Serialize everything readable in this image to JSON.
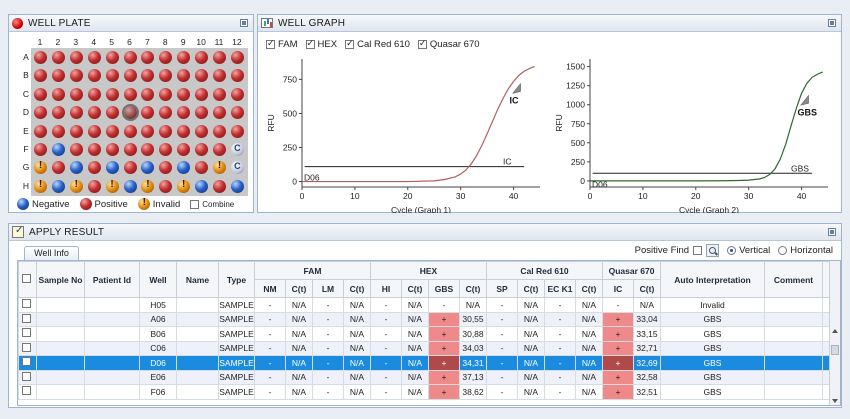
{
  "plate": {
    "title": "WELL PLATE",
    "columns": [
      "1",
      "2",
      "3",
      "4",
      "5",
      "6",
      "7",
      "8",
      "9",
      "10",
      "11",
      "12"
    ],
    "rows": [
      "A",
      "B",
      "C",
      "D",
      "E",
      "F",
      "G",
      "H"
    ],
    "wells": [
      [
        "pos",
        "pos",
        "pos",
        "pos",
        "pos",
        "pos",
        "pos",
        "pos",
        "pos",
        "pos",
        "pos",
        "pos"
      ],
      [
        "pos",
        "pos",
        "pos",
        "pos",
        "pos",
        "pos",
        "pos",
        "pos",
        "pos",
        "pos",
        "pos",
        "pos"
      ],
      [
        "pos",
        "pos",
        "pos",
        "pos",
        "pos",
        "pos",
        "pos",
        "pos",
        "pos",
        "pos",
        "pos",
        "pos"
      ],
      [
        "pos",
        "pos",
        "pos",
        "pos",
        "pos",
        "sel",
        "pos",
        "pos",
        "pos",
        "pos",
        "pos",
        "pos"
      ],
      [
        "pos",
        "pos",
        "pos",
        "pos",
        "pos",
        "pos",
        "pos",
        "pos",
        "pos",
        "pos",
        "pos",
        "pos"
      ],
      [
        "pos",
        "neg",
        "pos",
        "pos",
        "pos",
        "pos",
        "pos",
        "pos",
        "pos",
        "pos",
        "pos",
        "ctrl"
      ],
      [
        "inv",
        "pos",
        "neg",
        "pos",
        "neg",
        "pos",
        "neg",
        "pos",
        "neg",
        "pos",
        "inv",
        "ctrl"
      ],
      [
        "inv",
        "neg",
        "inv",
        "pos",
        "inv",
        "neg",
        "inv",
        "pos",
        "inv",
        "neg",
        "pos",
        "neg"
      ]
    ],
    "legend": {
      "negative": "Negative",
      "positive": "Positive",
      "invalid": "Invalid",
      "combine": "Combine"
    }
  },
  "graph": {
    "title": "WELL GRAPH",
    "channels": [
      "FAM",
      "HEX",
      "Cal Red 610",
      "Quasar 670"
    ],
    "colors": {
      "graph1": "#b06060",
      "graph2": "#2e6a2e"
    },
    "chart_data": [
      {
        "type": "line",
        "xlabel": "Cycle (Graph 1)",
        "ylabel": "RFU",
        "xlim": [
          0,
          45
        ],
        "ylim": [
          -40,
          900
        ],
        "xticks": [
          0,
          10,
          20,
          30,
          40
        ],
        "yticks": [
          0,
          250,
          500,
          750
        ],
        "threshold": 110,
        "threshold_label": "IC",
        "curve_label": "IC",
        "well_label": "D06",
        "series": [
          {
            "x": [
              0,
              5,
              10,
              15,
              20,
              25,
              27,
              29,
              30,
              31,
              32,
              33,
              34,
              35,
              36,
              37,
              38,
              39,
              40,
              41,
              42,
              43,
              44
            ],
            "values": [
              0,
              0,
              0,
              0,
              0,
              5,
              15,
              35,
              55,
              85,
              130,
              190,
              265,
              350,
              440,
              530,
              610,
              680,
              735,
              780,
              810,
              830,
              845
            ]
          }
        ]
      },
      {
        "type": "line",
        "xlabel": "Cycle (Graph 2)",
        "ylabel": "RFU",
        "xlim": [
          0,
          45
        ],
        "ylim": [
          -80,
          1600
        ],
        "xticks": [
          0,
          10,
          20,
          30,
          40
        ],
        "yticks": [
          0,
          250,
          500,
          750,
          1000,
          1250,
          1500
        ],
        "threshold": 100,
        "threshold_label": "GBS",
        "curve_label": "GBS",
        "well_label": "D06",
        "series": [
          {
            "x": [
              0,
              5,
              10,
              15,
              20,
              25,
              28,
              30,
              32,
              33,
              34,
              35,
              36,
              37,
              38,
              39,
              40,
              41,
              42,
              43,
              44
            ],
            "values": [
              0,
              0,
              0,
              0,
              0,
              2,
              5,
              10,
              25,
              45,
              85,
              160,
              290,
              480,
              720,
              950,
              1150,
              1280,
              1360,
              1400,
              1430
            ]
          }
        ]
      }
    ]
  },
  "result": {
    "title": "APPLY RESULT",
    "tab": "Well Info",
    "positive_find": "Positive Find",
    "vertical": "Vertical",
    "horizontal": "Horizontal",
    "headers": {
      "sample_no": "Sample No",
      "patient_id": "Patient Id",
      "well": "Well",
      "name": "Name",
      "type": "Type",
      "fam": "FAM",
      "hex": "HEX",
      "calred": "Cal Red 610",
      "quasar": "Quasar 670",
      "auto_interp": "Auto  Interpretation",
      "comment": "Comment"
    },
    "subheaders": [
      "NM",
      "C(t)",
      "LM",
      "C(t)",
      "HI",
      "C(t)",
      "GBS",
      "C(t)",
      "SP",
      "C(t)",
      "EC K1",
      "C(t)",
      "IC",
      "C(t)"
    ],
    "rows": [
      {
        "well": "H05",
        "type": "SAMPLE",
        "cells": [
          "-",
          "N/A",
          "-",
          "N/A",
          "-",
          "N/A",
          "-",
          "N/A",
          "-",
          "N/A",
          "-",
          "N/A",
          "-",
          "N/A"
        ],
        "interp": "Invalid",
        "pos": []
      },
      {
        "well": "A06",
        "type": "SAMPLE",
        "cells": [
          "-",
          "N/A",
          "-",
          "N/A",
          "-",
          "N/A",
          "+",
          "30,55",
          "-",
          "N/A",
          "-",
          "N/A",
          "+",
          "33,04"
        ],
        "interp": "GBS",
        "pos": [
          6,
          12
        ]
      },
      {
        "well": "B06",
        "type": "SAMPLE",
        "cells": [
          "-",
          "N/A",
          "-",
          "N/A",
          "-",
          "N/A",
          "+",
          "30,88",
          "-",
          "N/A",
          "-",
          "N/A",
          "+",
          "33,15"
        ],
        "interp": "GBS",
        "pos": [
          6,
          12
        ]
      },
      {
        "well": "C06",
        "type": "SAMPLE",
        "cells": [
          "-",
          "N/A",
          "-",
          "N/A",
          "-",
          "N/A",
          "+",
          "34,03",
          "-",
          "N/A",
          "-",
          "N/A",
          "+",
          "32,71"
        ],
        "interp": "GBS",
        "pos": [
          6,
          12
        ]
      },
      {
        "well": "D06",
        "type": "SAMPLE",
        "cells": [
          "-",
          "N/A",
          "-",
          "N/A",
          "-",
          "N/A",
          "+",
          "34,31",
          "-",
          "N/A",
          "-",
          "N/A",
          "+",
          "32,69"
        ],
        "interp": "GBS",
        "pos": [
          6,
          12
        ],
        "selected": true
      },
      {
        "well": "E06",
        "type": "SAMPLE",
        "cells": [
          "-",
          "N/A",
          "-",
          "N/A",
          "-",
          "N/A",
          "+",
          "37,13",
          "-",
          "N/A",
          "-",
          "N/A",
          "+",
          "32,58"
        ],
        "interp": "GBS",
        "pos": [
          6,
          12
        ]
      },
      {
        "well": "F06",
        "type": "SAMPLE",
        "cells": [
          "-",
          "N/A",
          "-",
          "N/A",
          "-",
          "N/A",
          "+",
          "38,62",
          "-",
          "N/A",
          "-",
          "N/A",
          "+",
          "32,51"
        ],
        "interp": "GBS",
        "pos": [
          6,
          12
        ]
      }
    ]
  }
}
